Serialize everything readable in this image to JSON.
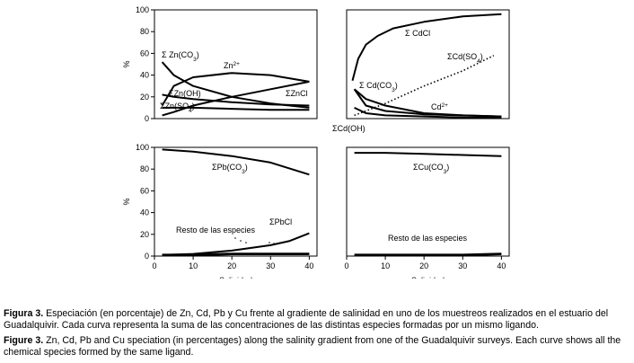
{
  "chart_data": [
    {
      "type": "line",
      "panel": "zinc",
      "ylabel": "%",
      "xlabel": "",
      "xlim": [
        0,
        42
      ],
      "ylim": [
        0,
        100
      ],
      "yticks": [
        "0",
        "20",
        "40",
        "60",
        "80",
        "100"
      ],
      "xticks": [],
      "series": [
        {
          "name": "Σ Zn(CO3)",
          "x": [
            2,
            5,
            10,
            20,
            30,
            40
          ],
          "y": [
            52,
            40,
            30,
            20,
            14,
            10
          ]
        },
        {
          "name": "Zn2+",
          "x": [
            2,
            5,
            10,
            20,
            30,
            40
          ],
          "y": [
            12,
            30,
            38,
            42,
            40,
            34
          ]
        },
        {
          "name": "ΣZn(OH)",
          "x": [
            2,
            5,
            10,
            20,
            30,
            40
          ],
          "y": [
            22,
            20,
            18,
            15,
            13,
            12
          ]
        },
        {
          "name": "ΣZnCl",
          "x": [
            2,
            5,
            10,
            20,
            30,
            40
          ],
          "y": [
            3,
            6,
            12,
            20,
            27,
            34
          ]
        },
        {
          "name": "ΣZn(SO4)",
          "x": [
            2,
            5,
            10,
            20,
            30,
            40
          ],
          "y": [
            10,
            10,
            10,
            9,
            8,
            8
          ]
        }
      ],
      "annotations": [
        "Σ Zn(CO",
        "3",
        ")",
        "Zn",
        "2+",
        "ΣZn(OH)",
        "ΣZnCl",
        "ΣZn(SO",
        "4",
        ")"
      ]
    },
    {
      "type": "line",
      "panel": "cadmium",
      "ylabel": "",
      "xlabel": "",
      "xlim": [
        0,
        42
      ],
      "ylim": [
        0,
        100
      ],
      "yticks": [],
      "xticks": [],
      "series": [
        {
          "name": "Σ CdCl",
          "x": [
            1.5,
            3,
            5,
            8,
            12,
            20,
            30,
            40
          ],
          "y": [
            35,
            55,
            68,
            76,
            83,
            89,
            94,
            96
          ]
        },
        {
          "name": "ΣCd(SO4)",
          "x": [
            2,
            10,
            20,
            30,
            38
          ],
          "y": [
            3,
            14,
            30,
            44,
            58
          ],
          "dotted": true
        },
        {
          "name": "Σ Cd(CO3)",
          "x": [
            2,
            5,
            10,
            20,
            30,
            40
          ],
          "y": [
            27,
            18,
            12,
            5,
            3,
            2
          ]
        },
        {
          "name": "Cd2+",
          "x": [
            2,
            5,
            10,
            20,
            30,
            40
          ],
          "y": [
            27,
            12,
            7,
            4,
            3,
            2
          ]
        },
        {
          "name": "ΣCd(OH)",
          "x": [
            2,
            5,
            10,
            20,
            30,
            40
          ],
          "y": [
            10,
            5,
            3,
            2,
            1,
            1
          ]
        }
      ],
      "annotations": [
        "Σ CdCl",
        "ΣCd(SO",
        "4",
        ")",
        "Σ Cd(CO",
        "3",
        ")",
        "Cd",
        "2+",
        "ΣCd(OH)"
      ]
    },
    {
      "type": "line",
      "panel": "lead",
      "ylabel": "%",
      "xlabel": "Salinidad",
      "xlim": [
        0,
        42
      ],
      "ylim": [
        0,
        100
      ],
      "yticks": [
        "0",
        "20",
        "40",
        "60",
        "80",
        "100"
      ],
      "xticks": [
        "0",
        "10",
        "20",
        "30",
        "40"
      ],
      "series": [
        {
          "name": "ΣPb(CO3)",
          "x": [
            2,
            10,
            20,
            30,
            40
          ],
          "y": [
            98,
            96,
            92,
            86,
            75
          ]
        },
        {
          "name": "ΣPbCl",
          "x": [
            2,
            10,
            20,
            30,
            35,
            40
          ],
          "y": [
            1,
            2,
            5,
            10,
            14,
            21
          ]
        },
        {
          "name": "Resto de las especies",
          "x": [
            2,
            10,
            20,
            30,
            40
          ],
          "y": [
            1,
            1,
            2,
            2,
            2
          ]
        }
      ],
      "annotations": [
        "ΣPb(CO",
        "3",
        ")",
        "ΣPbCl",
        "Resto de las especies"
      ]
    },
    {
      "type": "line",
      "panel": "copper",
      "ylabel": "",
      "xlabel": "Salinidad",
      "xlim": [
        0,
        42
      ],
      "ylim": [
        0,
        100
      ],
      "yticks": [],
      "xticks": [
        "0",
        "10",
        "20",
        "30",
        "40"
      ],
      "series": [
        {
          "name": "ΣCu(CO3)",
          "x": [
            2,
            10,
            20,
            30,
            40
          ],
          "y": [
            95,
            95,
            94,
            93,
            92
          ]
        },
        {
          "name": "Resto de las especies",
          "x": [
            2,
            10,
            20,
            30,
            40
          ],
          "y": [
            1,
            1,
            1,
            1,
            2
          ]
        }
      ],
      "annotations": [
        "ΣCu(CO",
        "3",
        ")",
        "Resto de las especies"
      ]
    }
  ],
  "caption_es": {
    "label": "Figura 3.",
    "text": " Especiación (en porcentaje) de Zn, Cd, Pb y Cu frente al gradiente de salinidad en uno de los muestreos realizados en el estuario del Guadalquivir. Cada curva representa la suma de las concentraciones de las distintas especies formadas por un mismo ligando."
  },
  "caption_en": {
    "label": "Figure 3.",
    "text": " Zn, Cd, Pb and Cu speciation (in percentages) along the salinity gradient from one of the Guadalquivir surveys. Each curve shows all the chemical species formed by the same ligand."
  },
  "colors": {
    "line": "#000000",
    "axis": "#000000",
    "background": "#ffffff"
  }
}
